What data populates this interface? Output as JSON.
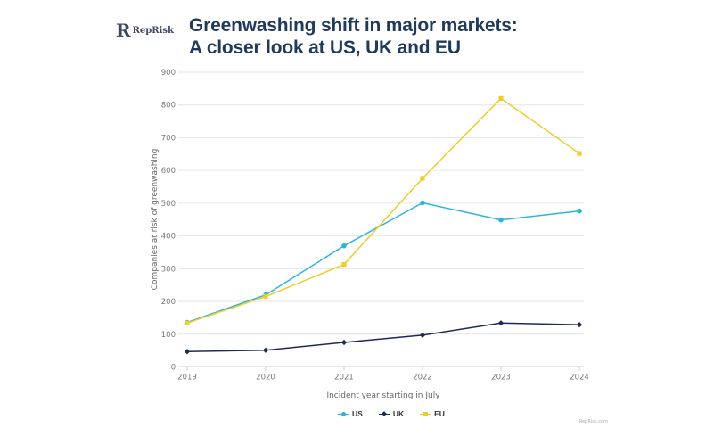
{
  "brand": {
    "logo_mark": "R",
    "logo_text": "RepRisk",
    "footer": "RepRisk.com"
  },
  "title": {
    "line1": "Greenwashing shift in major markets:",
    "line2": "A closer look at US, UK and EU"
  },
  "colors": {
    "title": "#1f3a5a",
    "US": "#2bb5d8",
    "UK": "#1c2a5a",
    "EU": "#f0cc2a",
    "grid": "#e6e6e6"
  },
  "chart_data": {
    "type": "line",
    "title": "Greenwashing shift in major markets: A closer look at US, UK and EU",
    "xlabel": "Incident year starting in July",
    "ylabel": "Companies at risk of greenwashing",
    "x": [
      "2019",
      "2020",
      "2021",
      "2022",
      "2023",
      "2024"
    ],
    "ylim": [
      0,
      900
    ],
    "yticks": [
      0,
      100,
      200,
      300,
      400,
      500,
      600,
      700,
      800,
      900
    ],
    "grid": true,
    "legend_position": "bottom-center",
    "series": [
      {
        "name": "US",
        "marker": "circle",
        "color": "#2bb5d8",
        "values": [
          136,
          220,
          370,
          501,
          449,
          476
        ]
      },
      {
        "name": "UK",
        "marker": "diamond",
        "color": "#1c2a5a",
        "values": [
          47,
          51,
          75,
          97,
          134,
          129
        ]
      },
      {
        "name": "EU",
        "marker": "square",
        "color": "#f0cc2a",
        "values": [
          134,
          215,
          313,
          576,
          820,
          652
        ]
      }
    ]
  }
}
